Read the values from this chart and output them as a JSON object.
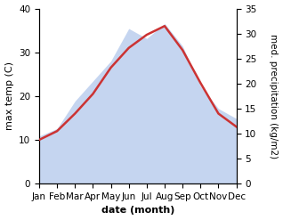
{
  "months": [
    "Jan",
    "Feb",
    "Mar",
    "Apr",
    "May",
    "Jun",
    "Jul",
    "Aug",
    "Sep",
    "Oct",
    "Nov",
    "Dec"
  ],
  "temperature": [
    10.0,
    12.0,
    16.0,
    20.5,
    26.5,
    31.0,
    34.0,
    36.0,
    30.5,
    23.0,
    16.0,
    13.0
  ],
  "precipitation": [
    9.5,
    11.0,
    16.5,
    20.5,
    24.5,
    31.0,
    29.0,
    32.0,
    27.5,
    19.5,
    15.0,
    13.0
  ],
  "temp_color": "#cc3333",
  "precip_fill_color": "#c5d5f0",
  "temp_ylim": [
    0,
    40
  ],
  "precip_ylim": [
    0,
    35
  ],
  "temp_yticks": [
    0,
    10,
    20,
    30,
    40
  ],
  "precip_yticks": [
    0,
    5,
    10,
    15,
    20,
    25,
    30,
    35
  ],
  "xlabel": "date (month)",
  "ylabel_left": "max temp (C)",
  "ylabel_right": "med. precipitation (kg/m2)",
  "axis_fontsize": 8,
  "tick_fontsize": 7.5,
  "line_width": 1.8
}
